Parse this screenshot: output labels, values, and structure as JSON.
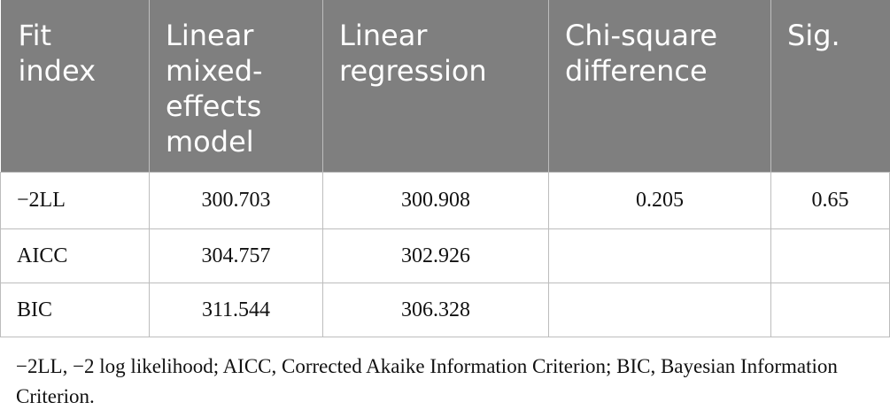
{
  "table": {
    "headers": [
      "Fit index",
      "Linear mixed-effects model",
      "Linear regression",
      "Chi-square difference",
      "Sig."
    ],
    "rows": [
      [
        "−2LL",
        "300.703",
        "300.908",
        "0.205",
        "0.65"
      ],
      [
        "AICC",
        "304.757",
        "302.926",
        "",
        ""
      ],
      [
        "BIC",
        "311.544",
        "306.328",
        "",
        ""
      ]
    ]
  },
  "footnote": "−2LL, −2 log likelihood; AICC, Corrected Akaike Information Criterion; BIC, Bayesian Information Criterion."
}
